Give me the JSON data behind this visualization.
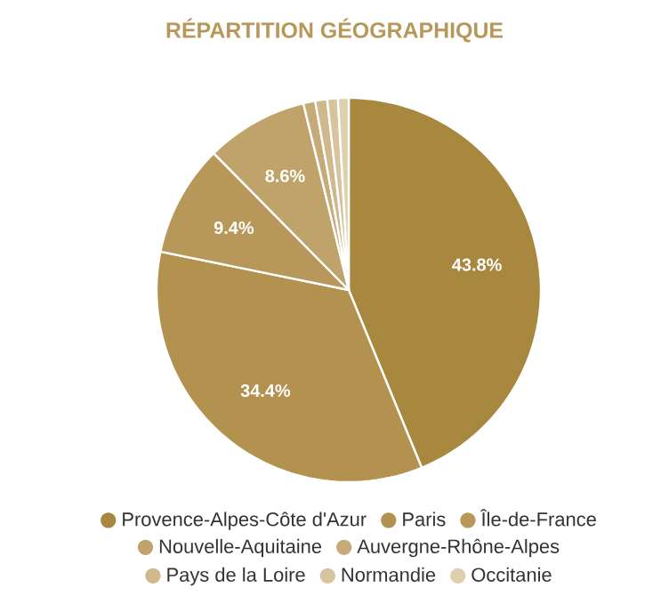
{
  "chart_data": {
    "type": "pie",
    "title": "RÉPARTITION GÉOGRAPHIQUE",
    "categories": [
      "Provence-Alpes-Côte d'Azur",
      "Paris",
      "Île-de-France",
      "Nouvelle-Aquitaine",
      "Auvergne-Rhône-Alpes",
      "Pays de la Loire",
      "Normandie",
      "Occitanie"
    ],
    "values": [
      43.8,
      34.4,
      9.4,
      8.6,
      1.0,
      1.0,
      0.9,
      0.9
    ],
    "colors": [
      "#a8873f",
      "#b3924f",
      "#b8985a",
      "#c0a36a",
      "#c6ab78",
      "#cfb98c",
      "#d7c49c",
      "#dfcfae"
    ],
    "value_labels": [
      "43.8%",
      "34.4%",
      "9.4%",
      "8.6%",
      null,
      null,
      null,
      null
    ],
    "legend": "bottom"
  }
}
